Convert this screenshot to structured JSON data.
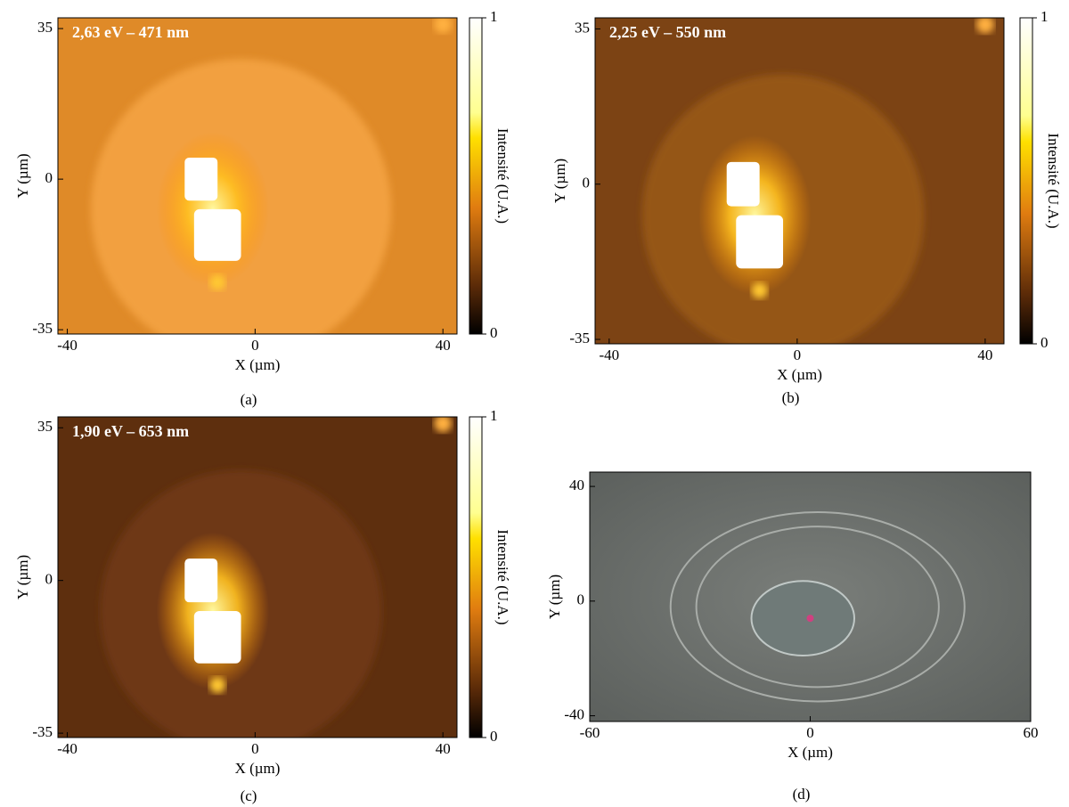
{
  "chart_data": [
    {
      "type": "heatmap",
      "title": "2,63 eV – 471 nm",
      "xlabel": "X (µm)",
      "ylabel": "Y (µm)",
      "caption": "(a)",
      "xlim": [
        -42,
        43
      ],
      "xticks": [
        -40,
        0,
        40
      ],
      "ylim": [
        -36,
        37.5
      ],
      "yticks": [
        -35,
        0,
        35
      ],
      "colorbar": {
        "label": "Intensité (U.A.)",
        "lim": [
          0,
          1
        ],
        "ticks": [
          0,
          1
        ]
      }
    },
    {
      "type": "heatmap",
      "title": "2,25 eV – 550 nm",
      "xlabel": "X (µm)",
      "ylabel": "Y (µm)",
      "caption": "(b)",
      "xlim": [
        -43,
        44
      ],
      "xticks": [
        -40,
        0,
        40
      ],
      "ylim": [
        -36,
        37.5
      ],
      "yticks": [
        -35,
        0,
        35
      ],
      "colorbar": {
        "label": "Intensité (U.A.)",
        "lim": [
          0,
          1
        ],
        "ticks": [
          0,
          1
        ]
      }
    },
    {
      "type": "heatmap",
      "title": "1,90 eV – 653 nm",
      "xlabel": "X (µm)",
      "ylabel": "Y (µm)",
      "caption": "(c)",
      "xlim": [
        -42,
        43
      ],
      "xticks": [
        -40,
        0,
        40
      ],
      "ylim": [
        -36,
        37.5
      ],
      "yticks": [
        -35,
        0,
        35
      ],
      "colorbar": {
        "label": "Intensité (U.A.)",
        "lim": [
          0,
          1
        ],
        "ticks": [
          0,
          1
        ]
      }
    },
    {
      "type": "image",
      "xlabel": "X (µm)",
      "ylabel": "Y (µm)",
      "caption": "(d)",
      "xlim": [
        -60,
        60
      ],
      "xticks": [
        -60,
        0,
        60
      ],
      "ylim": [
        -42,
        45
      ],
      "yticks": [
        -40,
        0,
        40
      ]
    }
  ]
}
